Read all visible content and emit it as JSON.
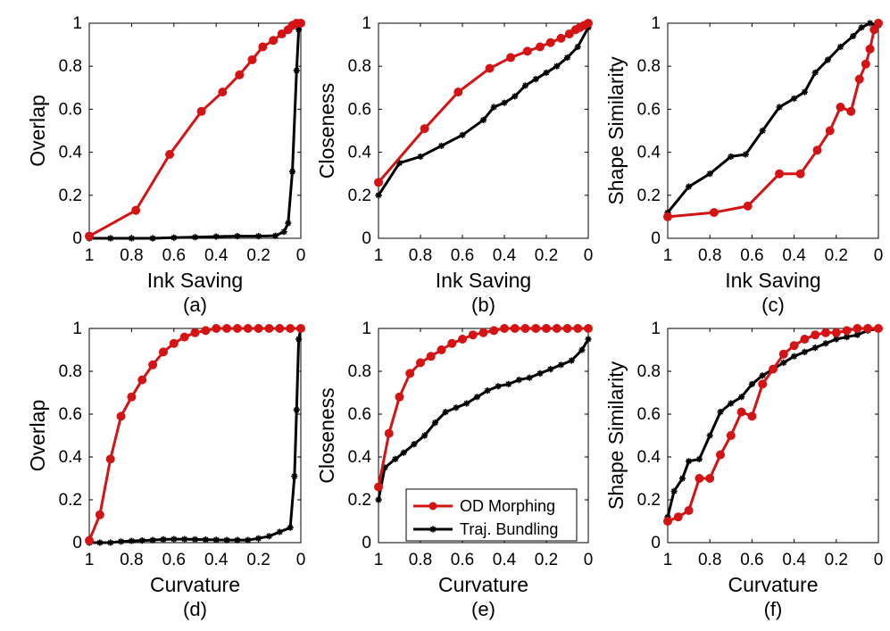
{
  "colors": {
    "od": "#d41414",
    "traj": "#000000",
    "axes": "#000000",
    "background": "#ffffff"
  },
  "legend": {
    "placement": "bottom-right of panel (e)",
    "entries": [
      {
        "label": "OD Morphing",
        "color": "#d41414",
        "marker": "circle"
      },
      {
        "label": "Traj. Bundling",
        "color": "#000000",
        "marker": "star"
      }
    ]
  },
  "chart_data": [
    {
      "type": "line",
      "caption": "(a)",
      "xlabel": "Ink Saving",
      "ylabel": "Overlap",
      "xlim": [
        1,
        0
      ],
      "x_reversed": true,
      "ylim": [
        0,
        1
      ],
      "xticks": [
        "1",
        "0.8",
        "0.6",
        "0.4",
        "0.2",
        "0"
      ],
      "yticks": [
        "0",
        "0.2",
        "0.4",
        "0.6",
        "0.8",
        "1"
      ],
      "grid": false,
      "series": [
        {
          "name": "OD Morphing",
          "x": [
            1,
            0.78,
            0.62,
            0.47,
            0.37,
            0.29,
            0.23,
            0.18,
            0.13,
            0.09,
            0.06,
            0.04,
            0.02,
            0.0
          ],
          "y": [
            0.01,
            0.13,
            0.39,
            0.59,
            0.68,
            0.76,
            0.83,
            0.89,
            0.92,
            0.95,
            0.97,
            0.99,
            1.0,
            1.0
          ]
        },
        {
          "name": "Traj. Bundling",
          "x": [
            1,
            0.9,
            0.8,
            0.7,
            0.6,
            0.5,
            0.4,
            0.3,
            0.2,
            0.12,
            0.08,
            0.06,
            0.04,
            0.02,
            0.01,
            0.0
          ],
          "y": [
            0.0,
            0.0,
            0.0,
            0.0,
            0.003,
            0.005,
            0.008,
            0.01,
            0.01,
            0.012,
            0.03,
            0.07,
            0.31,
            0.78,
            0.97,
            1.0
          ]
        }
      ]
    },
    {
      "type": "line",
      "caption": "(b)",
      "xlabel": "Ink Saving",
      "ylabel": "Closeness",
      "xlim": [
        1,
        0
      ],
      "x_reversed": true,
      "ylim": [
        0,
        1
      ],
      "xticks": [
        "1",
        "0.8",
        "0.6",
        "0.4",
        "0.2",
        "0"
      ],
      "yticks": [
        "0",
        "0.2",
        "0.4",
        "0.6",
        "0.8",
        "1"
      ],
      "grid": false,
      "series": [
        {
          "name": "OD Morphing",
          "x": [
            1,
            0.78,
            0.62,
            0.47,
            0.37,
            0.29,
            0.23,
            0.18,
            0.13,
            0.09,
            0.06,
            0.04,
            0.02,
            0.0
          ],
          "y": [
            0.26,
            0.51,
            0.68,
            0.79,
            0.84,
            0.87,
            0.89,
            0.91,
            0.93,
            0.95,
            0.97,
            0.98,
            0.99,
            1.0
          ]
        },
        {
          "name": "Traj. Bundling",
          "x": [
            1,
            0.9,
            0.8,
            0.7,
            0.6,
            0.5,
            0.45,
            0.4,
            0.35,
            0.3,
            0.25,
            0.2,
            0.15,
            0.1,
            0.05,
            0.0
          ],
          "y": [
            0.2,
            0.35,
            0.38,
            0.43,
            0.48,
            0.55,
            0.61,
            0.63,
            0.66,
            0.71,
            0.74,
            0.77,
            0.8,
            0.84,
            0.89,
            0.98
          ]
        }
      ]
    },
    {
      "type": "line",
      "caption": "(c)",
      "xlabel": "Ink Saving",
      "ylabel": "Shape Similarity",
      "xlim": [
        1,
        0
      ],
      "x_reversed": true,
      "ylim": [
        0,
        1
      ],
      "xticks": [
        "1",
        "0.8",
        "0.6",
        "0.4",
        "0.2",
        "0"
      ],
      "yticks": [
        "0",
        "0.2",
        "0.4",
        "0.6",
        "0.8",
        "1"
      ],
      "grid": false,
      "series": [
        {
          "name": "OD Morphing",
          "x": [
            1,
            0.78,
            0.62,
            0.47,
            0.37,
            0.29,
            0.23,
            0.18,
            0.13,
            0.09,
            0.06,
            0.04,
            0.02,
            0.0
          ],
          "y": [
            0.1,
            0.12,
            0.15,
            0.3,
            0.3,
            0.41,
            0.5,
            0.61,
            0.59,
            0.74,
            0.81,
            0.88,
            0.97,
            1.0
          ]
        },
        {
          "name": "Traj. Bundling",
          "x": [
            1,
            0.9,
            0.8,
            0.7,
            0.63,
            0.55,
            0.47,
            0.4,
            0.35,
            0.3,
            0.24,
            0.18,
            0.12,
            0.08,
            0.04,
            0.0
          ],
          "y": [
            0.12,
            0.24,
            0.3,
            0.38,
            0.39,
            0.5,
            0.61,
            0.65,
            0.68,
            0.77,
            0.83,
            0.89,
            0.94,
            0.98,
            1.0,
            0.99
          ]
        }
      ]
    },
    {
      "type": "line",
      "caption": "(d)",
      "xlabel": "Curvature",
      "ylabel": "Overlap",
      "xlim": [
        1,
        0
      ],
      "x_reversed": true,
      "ylim": [
        0,
        1
      ],
      "xticks": [
        "1",
        "0.8",
        "0.6",
        "0.4",
        "0.2",
        "0"
      ],
      "yticks": [
        "0",
        "0.2",
        "0.4",
        "0.6",
        "0.8",
        "1"
      ],
      "grid": false,
      "series": [
        {
          "name": "OD Morphing",
          "x": [
            1,
            0.95,
            0.9,
            0.85,
            0.8,
            0.75,
            0.7,
            0.65,
            0.6,
            0.55,
            0.5,
            0.45,
            0.4,
            0.35,
            0.3,
            0.25,
            0.2,
            0.15,
            0.1,
            0.05,
            0.0
          ],
          "y": [
            0.01,
            0.13,
            0.39,
            0.59,
            0.68,
            0.76,
            0.83,
            0.89,
            0.93,
            0.96,
            0.98,
            0.99,
            1.0,
            1.0,
            1.0,
            1.0,
            1.0,
            1.0,
            1.0,
            1.0,
            1.0
          ]
        },
        {
          "name": "Traj. Bundling",
          "x": [
            1,
            0.95,
            0.9,
            0.85,
            0.8,
            0.75,
            0.7,
            0.65,
            0.6,
            0.55,
            0.5,
            0.45,
            0.4,
            0.35,
            0.3,
            0.25,
            0.2,
            0.15,
            0.1,
            0.05,
            0.03,
            0.02,
            0.01,
            0.0
          ],
          "y": [
            0.0,
            0.0,
            0.0,
            0.005,
            0.008,
            0.01,
            0.012,
            0.015,
            0.016,
            0.016,
            0.015,
            0.014,
            0.013,
            0.012,
            0.012,
            0.012,
            0.02,
            0.03,
            0.05,
            0.07,
            0.31,
            0.62,
            0.95,
            1.0
          ]
        }
      ]
    },
    {
      "type": "line",
      "caption": "(e)",
      "xlabel": "Curvature",
      "ylabel": "Closeness",
      "xlim": [
        1,
        0
      ],
      "x_reversed": true,
      "ylim": [
        0,
        1
      ],
      "xticks": [
        "1",
        "0.8",
        "0.6",
        "0.4",
        "0.2",
        "0"
      ],
      "yticks": [
        "0",
        "0.2",
        "0.4",
        "0.6",
        "0.8",
        "1"
      ],
      "grid": false,
      "series": [
        {
          "name": "OD Morphing",
          "x": [
            1,
            0.95,
            0.9,
            0.85,
            0.8,
            0.75,
            0.7,
            0.65,
            0.6,
            0.55,
            0.5,
            0.45,
            0.4,
            0.35,
            0.3,
            0.25,
            0.2,
            0.15,
            0.1,
            0.05,
            0.0
          ],
          "y": [
            0.26,
            0.51,
            0.68,
            0.79,
            0.84,
            0.87,
            0.9,
            0.93,
            0.95,
            0.97,
            0.98,
            0.99,
            1.0,
            1.0,
            1.0,
            1.0,
            1.0,
            1.0,
            1.0,
            1.0,
            1.0
          ]
        },
        {
          "name": "Traj. Bundling",
          "x": [
            1,
            0.97,
            0.92,
            0.88,
            0.83,
            0.78,
            0.73,
            0.68,
            0.63,
            0.58,
            0.53,
            0.48,
            0.43,
            0.38,
            0.33,
            0.28,
            0.23,
            0.18,
            0.13,
            0.08,
            0.03,
            0.0
          ],
          "y": [
            0.2,
            0.35,
            0.39,
            0.42,
            0.46,
            0.5,
            0.56,
            0.61,
            0.63,
            0.65,
            0.68,
            0.71,
            0.73,
            0.74,
            0.76,
            0.77,
            0.79,
            0.81,
            0.83,
            0.85,
            0.9,
            0.95
          ]
        }
      ]
    },
    {
      "type": "line",
      "caption": "(f)",
      "xlabel": "Curvature",
      "ylabel": "Shape Similarity",
      "xlim": [
        1,
        0
      ],
      "x_reversed": true,
      "ylim": [
        0,
        1
      ],
      "xticks": [
        "1",
        "0.8",
        "0.6",
        "0.4",
        "0.2",
        "0"
      ],
      "yticks": [
        "0",
        "0.2",
        "0.4",
        "0.6",
        "0.8",
        "1"
      ],
      "grid": false,
      "series": [
        {
          "name": "OD Morphing",
          "x": [
            1,
            0.95,
            0.9,
            0.85,
            0.8,
            0.75,
            0.7,
            0.65,
            0.6,
            0.55,
            0.5,
            0.45,
            0.4,
            0.35,
            0.3,
            0.25,
            0.2,
            0.15,
            0.1,
            0.05,
            0.0
          ],
          "y": [
            0.1,
            0.12,
            0.15,
            0.3,
            0.3,
            0.41,
            0.5,
            0.61,
            0.59,
            0.74,
            0.81,
            0.88,
            0.92,
            0.95,
            0.97,
            0.98,
            0.98,
            0.99,
            1.0,
            1.0,
            1.0
          ]
        },
        {
          "name": "Traj. Bundling",
          "x": [
            1,
            0.97,
            0.93,
            0.9,
            0.85,
            0.8,
            0.75,
            0.7,
            0.65,
            0.6,
            0.55,
            0.5,
            0.45,
            0.4,
            0.35,
            0.3,
            0.25,
            0.2,
            0.15,
            0.1,
            0.05,
            0.0
          ],
          "y": [
            0.12,
            0.24,
            0.3,
            0.38,
            0.39,
            0.5,
            0.61,
            0.65,
            0.68,
            0.74,
            0.78,
            0.81,
            0.84,
            0.87,
            0.89,
            0.91,
            0.93,
            0.95,
            0.96,
            0.97,
            0.99,
            1.0
          ]
        }
      ]
    }
  ]
}
